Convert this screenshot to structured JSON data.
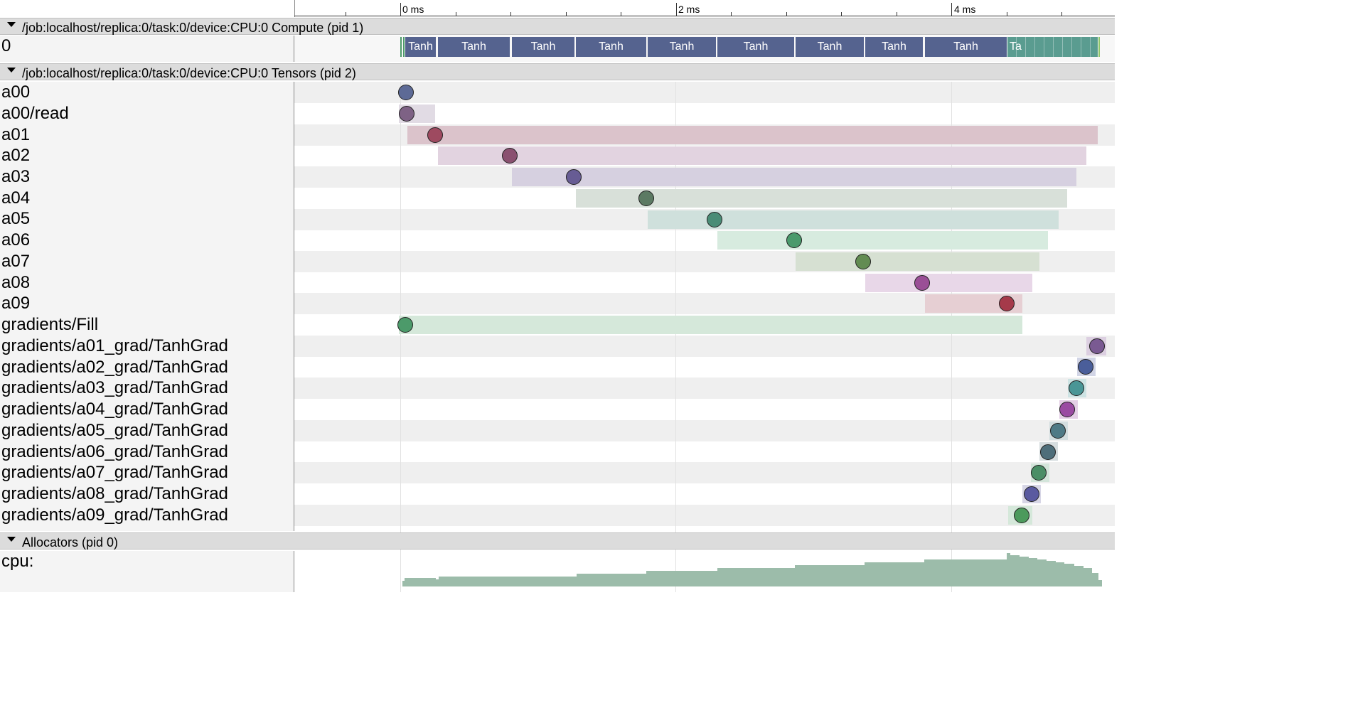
{
  "ruler": {
    "tick_labels": [
      "0 ms",
      "2 ms",
      "4 ms"
    ]
  },
  "compute_process": {
    "title": "/job:localhost/replica:0/task:0/device:CPU:0 Compute (pid 1)",
    "track_label": "0",
    "slices": [
      {
        "label": "Tanh"
      },
      {
        "label": "Tanh"
      },
      {
        "label": "Tanh"
      },
      {
        "label": "Tanh"
      },
      {
        "label": "Tanh"
      },
      {
        "label": "Tanh"
      },
      {
        "label": "Tanh"
      },
      {
        "label": "Tanh"
      },
      {
        "label": "Tanh"
      },
      {
        "label": "Ta"
      }
    ]
  },
  "tensors_process": {
    "title": "/job:localhost/replica:0/task:0/device:CPU:0 Tensors (pid 2)",
    "rows": [
      {
        "label": "a00"
      },
      {
        "label": "a00/read"
      },
      {
        "label": "a01"
      },
      {
        "label": "a02"
      },
      {
        "label": "a03"
      },
      {
        "label": "a04"
      },
      {
        "label": "a05"
      },
      {
        "label": "a06"
      },
      {
        "label": "a07"
      },
      {
        "label": "a08"
      },
      {
        "label": "a09"
      },
      {
        "label": "gradients/Fill"
      },
      {
        "label": "gradients/a01_grad/TanhGrad"
      },
      {
        "label": "gradients/a02_grad/TanhGrad"
      },
      {
        "label": "gradients/a03_grad/TanhGrad"
      },
      {
        "label": "gradients/a04_grad/TanhGrad"
      },
      {
        "label": "gradients/a05_grad/TanhGrad"
      },
      {
        "label": "gradients/a06_grad/TanhGrad"
      },
      {
        "label": "gradients/a07_grad/TanhGrad"
      },
      {
        "label": "gradients/a08_grad/TanhGrad"
      },
      {
        "label": "gradients/a09_grad/TanhGrad"
      }
    ]
  },
  "allocators_process": {
    "title": "Allocators (pid 0)",
    "track_label": "cpu:"
  },
  "colors": {
    "slice_blue": "#55638f",
    "slice_teal": "#5a9c90",
    "stripe": "#efefef",
    "header": "#dcdcdc",
    "area": "#9cbcaa"
  }
}
